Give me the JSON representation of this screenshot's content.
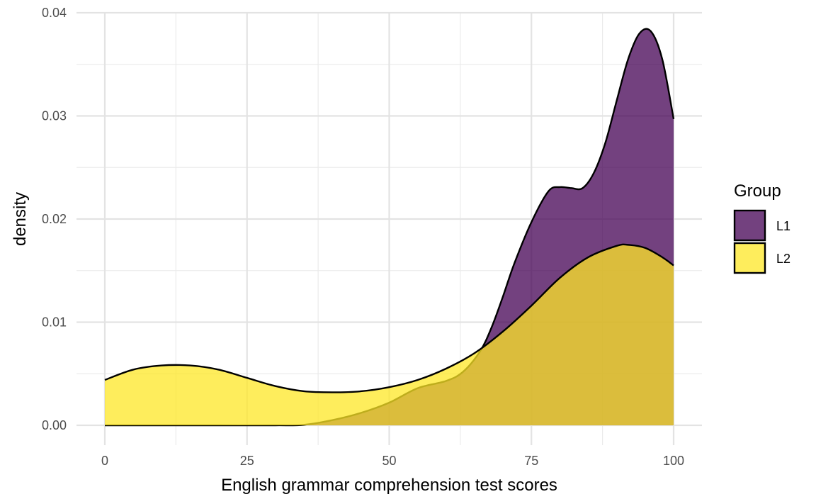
{
  "chart_data": {
    "type": "area",
    "subtype": "density",
    "xlabel": "English grammar comprehension test scores",
    "ylabel": "density",
    "xlim": [
      0,
      100
    ],
    "ylim": [
      0,
      0.04
    ],
    "x_ticks": [
      0,
      25,
      50,
      75,
      100
    ],
    "x_tick_labels": [
      "0",
      "25",
      "50",
      "75",
      "100"
    ],
    "y_ticks": [
      0,
      0.01,
      0.02,
      0.03,
      0.04
    ],
    "y_tick_labels": [
      "0.00",
      "0.01",
      "0.02",
      "0.03",
      "0.04"
    ],
    "grid": true,
    "legend": {
      "title": "Group",
      "position": "right"
    },
    "series": [
      {
        "name": "L1",
        "color": "#440154",
        "opacity": 0.75,
        "x": [
          0,
          10,
          20,
          30,
          35,
          40,
          45,
          50,
          55,
          60,
          63,
          66,
          68,
          70,
          72,
          75,
          78,
          80,
          82,
          84,
          86,
          88,
          90,
          92,
          94,
          96,
          98,
          100
        ],
        "y": [
          0,
          0,
          0,
          0,
          5e-05,
          0.0005,
          0.0012,
          0.0022,
          0.0036,
          0.0043,
          0.0052,
          0.0072,
          0.0095,
          0.0125,
          0.0157,
          0.0197,
          0.0227,
          0.0231,
          0.023,
          0.023,
          0.0245,
          0.0274,
          0.0315,
          0.0355,
          0.038,
          0.0382,
          0.0355,
          0.0297
        ]
      },
      {
        "name": "L2",
        "color": "#FDE725",
        "opacity": 0.75,
        "x": [
          0,
          5,
          10,
          15,
          20,
          25,
          30,
          35,
          40,
          45,
          50,
          55,
          60,
          65,
          70,
          75,
          80,
          85,
          90,
          92,
          95,
          98,
          100
        ],
        "y": [
          0.0044,
          0.0054,
          0.0058,
          0.0058,
          0.0054,
          0.0046,
          0.0038,
          0.0033,
          0.0032,
          0.0033,
          0.0037,
          0.0044,
          0.0055,
          0.007,
          0.0091,
          0.0116,
          0.0143,
          0.0163,
          0.0174,
          0.0175,
          0.0172,
          0.0163,
          0.0155
        ]
      }
    ]
  }
}
